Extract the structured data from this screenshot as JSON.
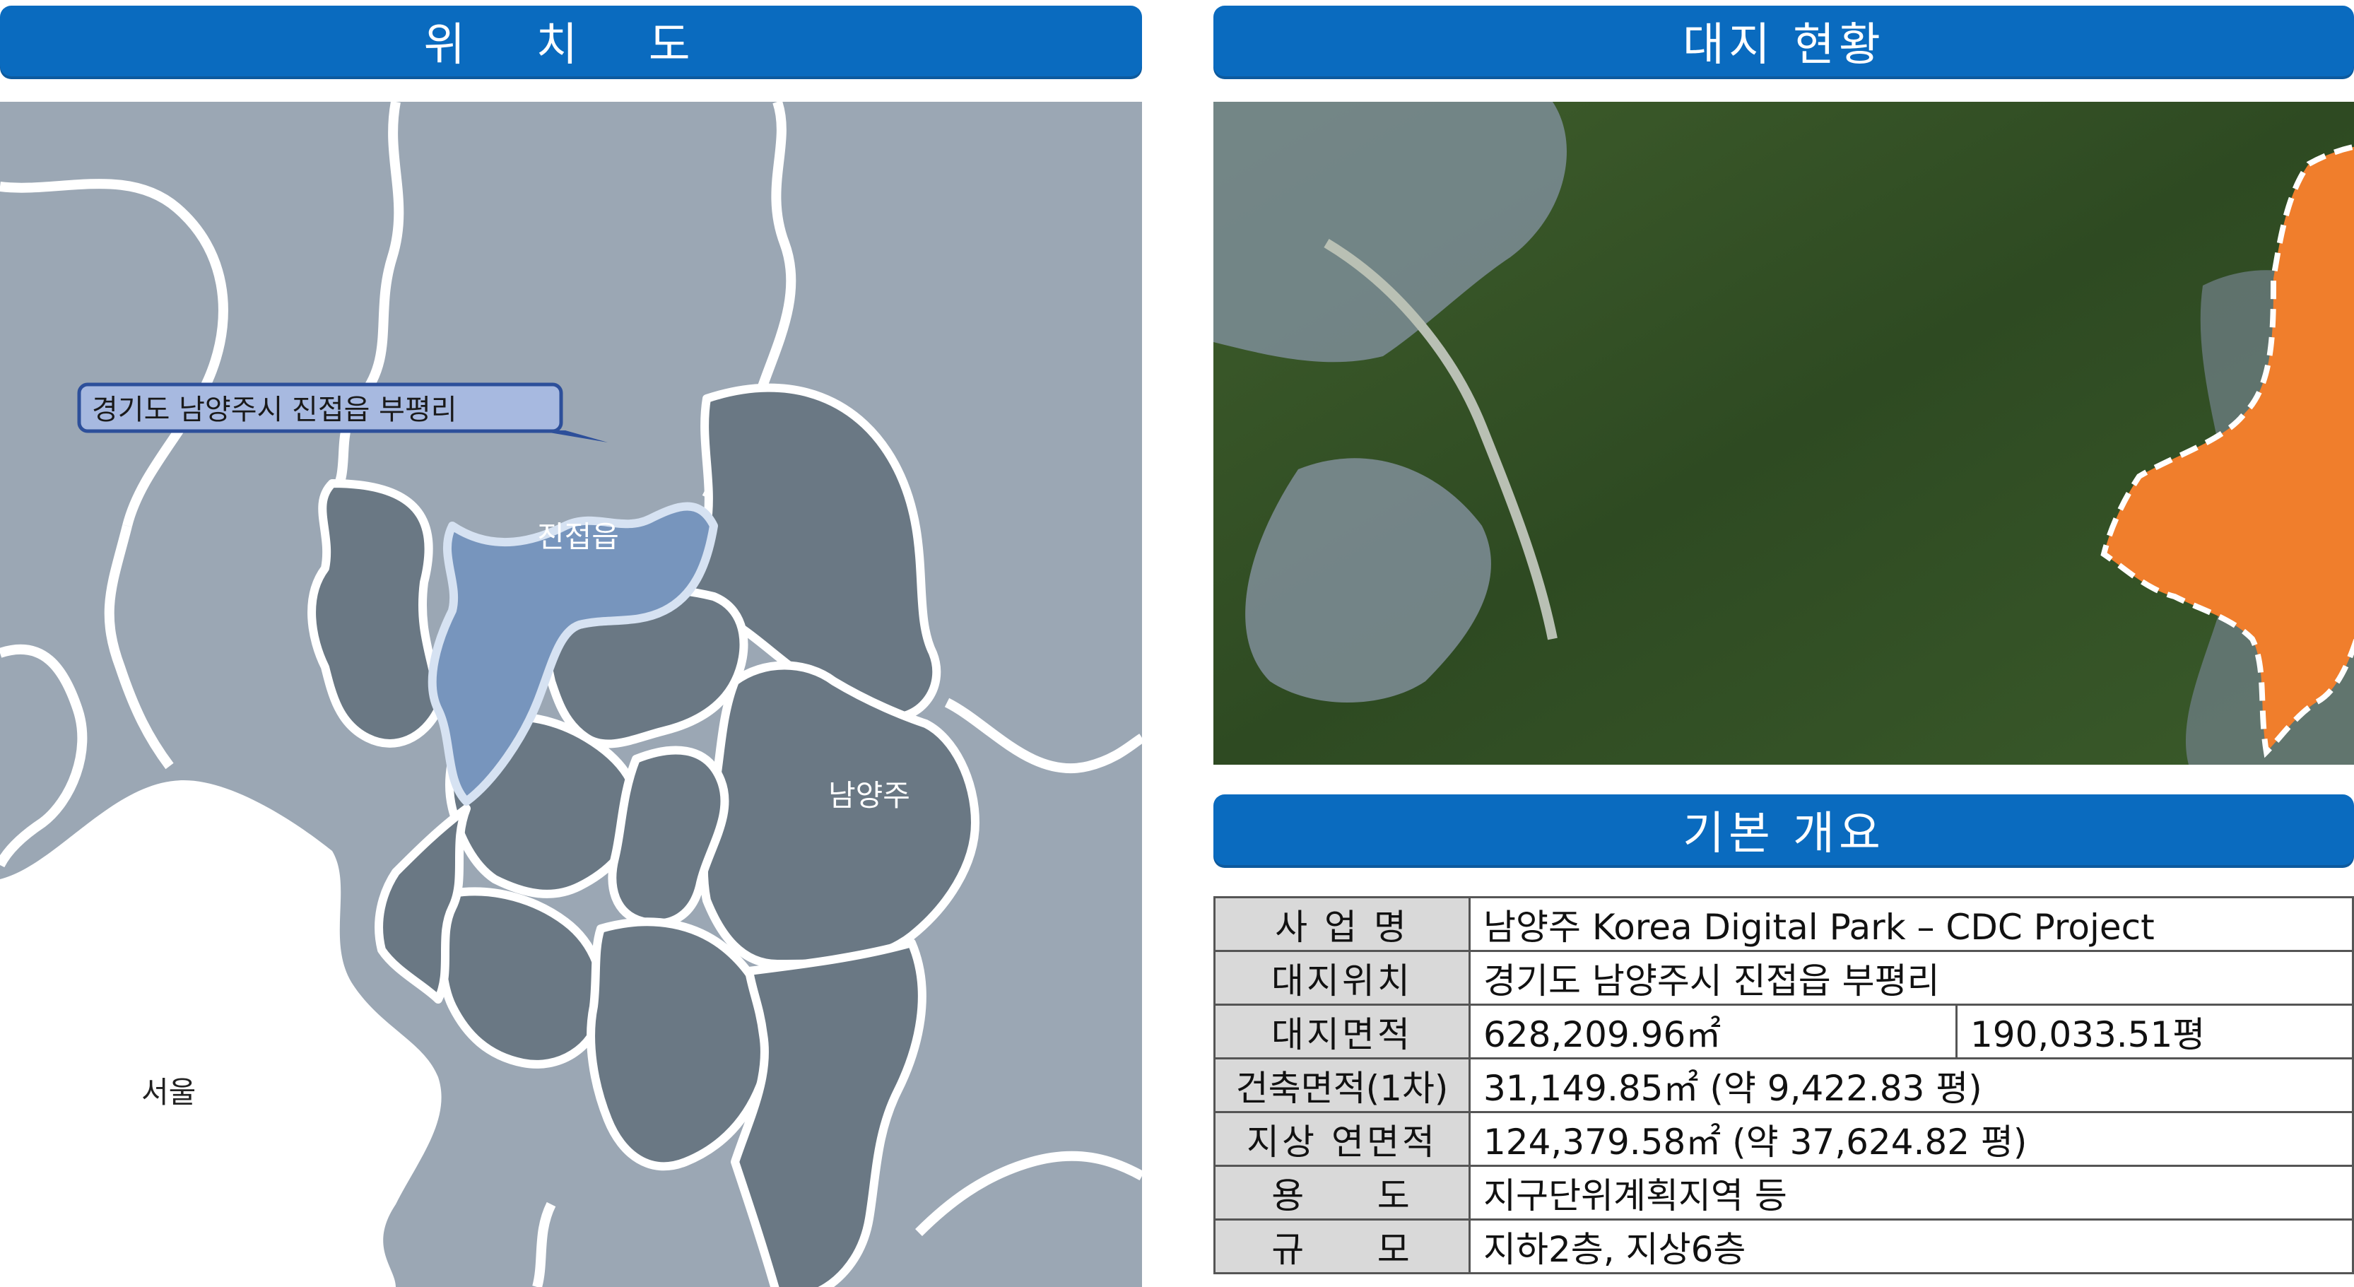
{
  "headers": {
    "location": "위 치 도",
    "site": "대지 현황",
    "overview": "기본 개요"
  },
  "map": {
    "callout": "경기도 남양주시 진접읍 부평리",
    "labels": {
      "jinjeop": "진접읍",
      "namyangju": "남양주",
      "seoul": "서울"
    },
    "colors": {
      "background": "#9ba7b4",
      "district": "#6a7884",
      "highlight": "#7795bd",
      "border": "#ffffff",
      "seoul": "#ffffff",
      "callout_fill": "#a7b9e0",
      "callout_stroke": "#2d4f9a"
    }
  },
  "aerial": {
    "site_color": "#f07e2c",
    "site_outline": "#ffffff"
  },
  "overview": {
    "rows": [
      {
        "label": "사 업 명",
        "value": "남양주 Korea Digital Park – CDC Project"
      },
      {
        "label": "대지위치",
        "value": "경기도   남양주시 진접읍  부평리"
      },
      {
        "label": "대지면적",
        "value": "628,209.96㎡",
        "value2": "190,033.51평"
      },
      {
        "label": "건축면적(1차)",
        "value": "31,149.85㎡ (약 9,422.83 평)"
      },
      {
        "label": "지상 연면적",
        "value": "124,379.58㎡ (약 37,624.82 평)"
      },
      {
        "label": "용     도",
        "value": "지구단위계획지역 등"
      },
      {
        "label": "규     모",
        "value": "지하2층, 지상6층"
      }
    ]
  }
}
